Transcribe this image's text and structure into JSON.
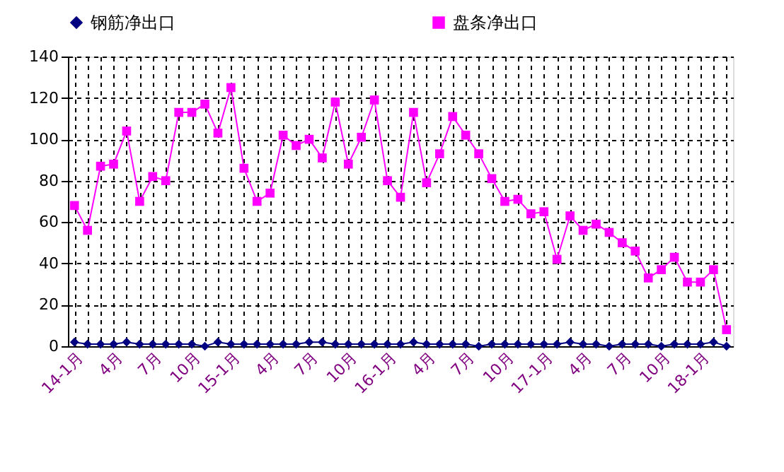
{
  "chart_data": {
    "type": "line",
    "categories": [
      "14-1月",
      null,
      null,
      "4月",
      null,
      null,
      "7月",
      null,
      null,
      "10月",
      null,
      null,
      "15-1月",
      null,
      null,
      "4月",
      null,
      null,
      "7月",
      null,
      null,
      "10月",
      null,
      null,
      "16-1月",
      null,
      null,
      "4月",
      null,
      null,
      "7月",
      null,
      null,
      "10月",
      null,
      null,
      "17-1月",
      null,
      null,
      "4月",
      null,
      null,
      "7月",
      null,
      null,
      "10月",
      null,
      null,
      "18-1月",
      null,
      null
    ],
    "series": [
      {
        "name": "钢筋净出口",
        "color": "#000080",
        "marker": "diamond",
        "values": [
          2,
          1,
          1,
          1,
          2,
          1,
          1,
          1,
          1,
          1,
          0,
          2,
          1,
          1,
          1,
          1,
          1,
          1,
          2,
          2,
          1,
          1,
          1,
          1,
          1,
          1,
          2,
          1,
          1,
          1,
          1,
          0,
          1,
          1,
          1,
          1,
          1,
          1,
          2,
          1,
          1,
          0,
          1,
          1,
          1,
          0,
          1,
          1,
          1,
          2,
          0
        ]
      },
      {
        "name": "盘条净出口",
        "color": "#ff00ff",
        "marker": "square",
        "values": [
          68,
          56,
          87,
          88,
          104,
          70,
          82,
          80,
          113,
          113,
          117,
          103,
          125,
          86,
          70,
          74,
          102,
          97,
          100,
          91,
          118,
          88,
          101,
          119,
          80,
          72,
          113,
          79,
          93,
          111,
          102,
          93,
          81,
          70,
          71,
          64,
          65,
          42,
          63,
          56,
          59,
          55,
          50,
          46,
          33,
          37,
          43,
          31,
          31,
          37,
          8
        ]
      }
    ],
    "ylim": [
      0,
      140
    ],
    "yticks": [
      0,
      20,
      40,
      60,
      80,
      100,
      120,
      140
    ],
    "grid": true,
    "legend": "top",
    "line_style": "solid"
  }
}
